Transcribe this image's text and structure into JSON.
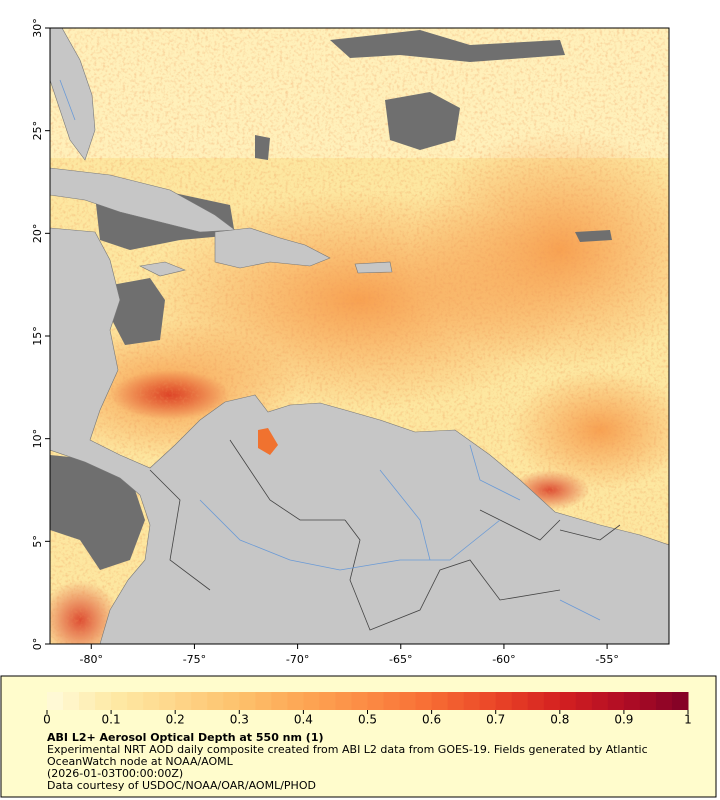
{
  "chart_data": {
    "type": "map",
    "xlim": [
      -82,
      -52
    ],
    "ylim": [
      0,
      30
    ],
    "xticks": [
      {
        "value": -80,
        "label": "-80°"
      },
      {
        "value": -75,
        "label": "-75°"
      },
      {
        "value": -70,
        "label": "-70°"
      },
      {
        "value": -65,
        "label": "-65°"
      },
      {
        "value": -60,
        "label": "-60°"
      },
      {
        "value": -55,
        "label": "-55°"
      }
    ],
    "yticks": [
      {
        "value": 0,
        "label": "0°"
      },
      {
        "value": 5,
        "label": "5°"
      },
      {
        "value": 10,
        "label": "10°"
      },
      {
        "value": 15,
        "label": "15°"
      },
      {
        "value": 20,
        "label": "20°"
      },
      {
        "value": 25,
        "label": "25°"
      },
      {
        "value": 30,
        "label": "30°"
      }
    ],
    "colorbar": {
      "lim": [
        0,
        1
      ],
      "ticks": [
        0,
        0.1,
        0.2,
        0.3,
        0.4,
        0.5,
        0.6,
        0.7,
        0.8,
        0.9,
        1
      ],
      "colors": [
        "#fffbdc",
        "#feeaa6",
        "#fed68a",
        "#fdc16c",
        "#fda654",
        "#fc8b44",
        "#f76c34",
        "#ea4527",
        "#d42020",
        "#b10d25",
        "#800026"
      ]
    },
    "title": "ABI L2+ Aerosol Optical Depth at 550 nm (1)",
    "description": [
      "Experimental NRT AOD daily composite created from ABI L2 data from GOES-19. Fields generated by Atlantic",
      "OceanWatch node at NOAA/AOML",
      "(2026-01-03T00:00:00Z)",
      "Data courtesy of USDOC/NOAA/OAR/AOML/PHOD"
    ]
  }
}
